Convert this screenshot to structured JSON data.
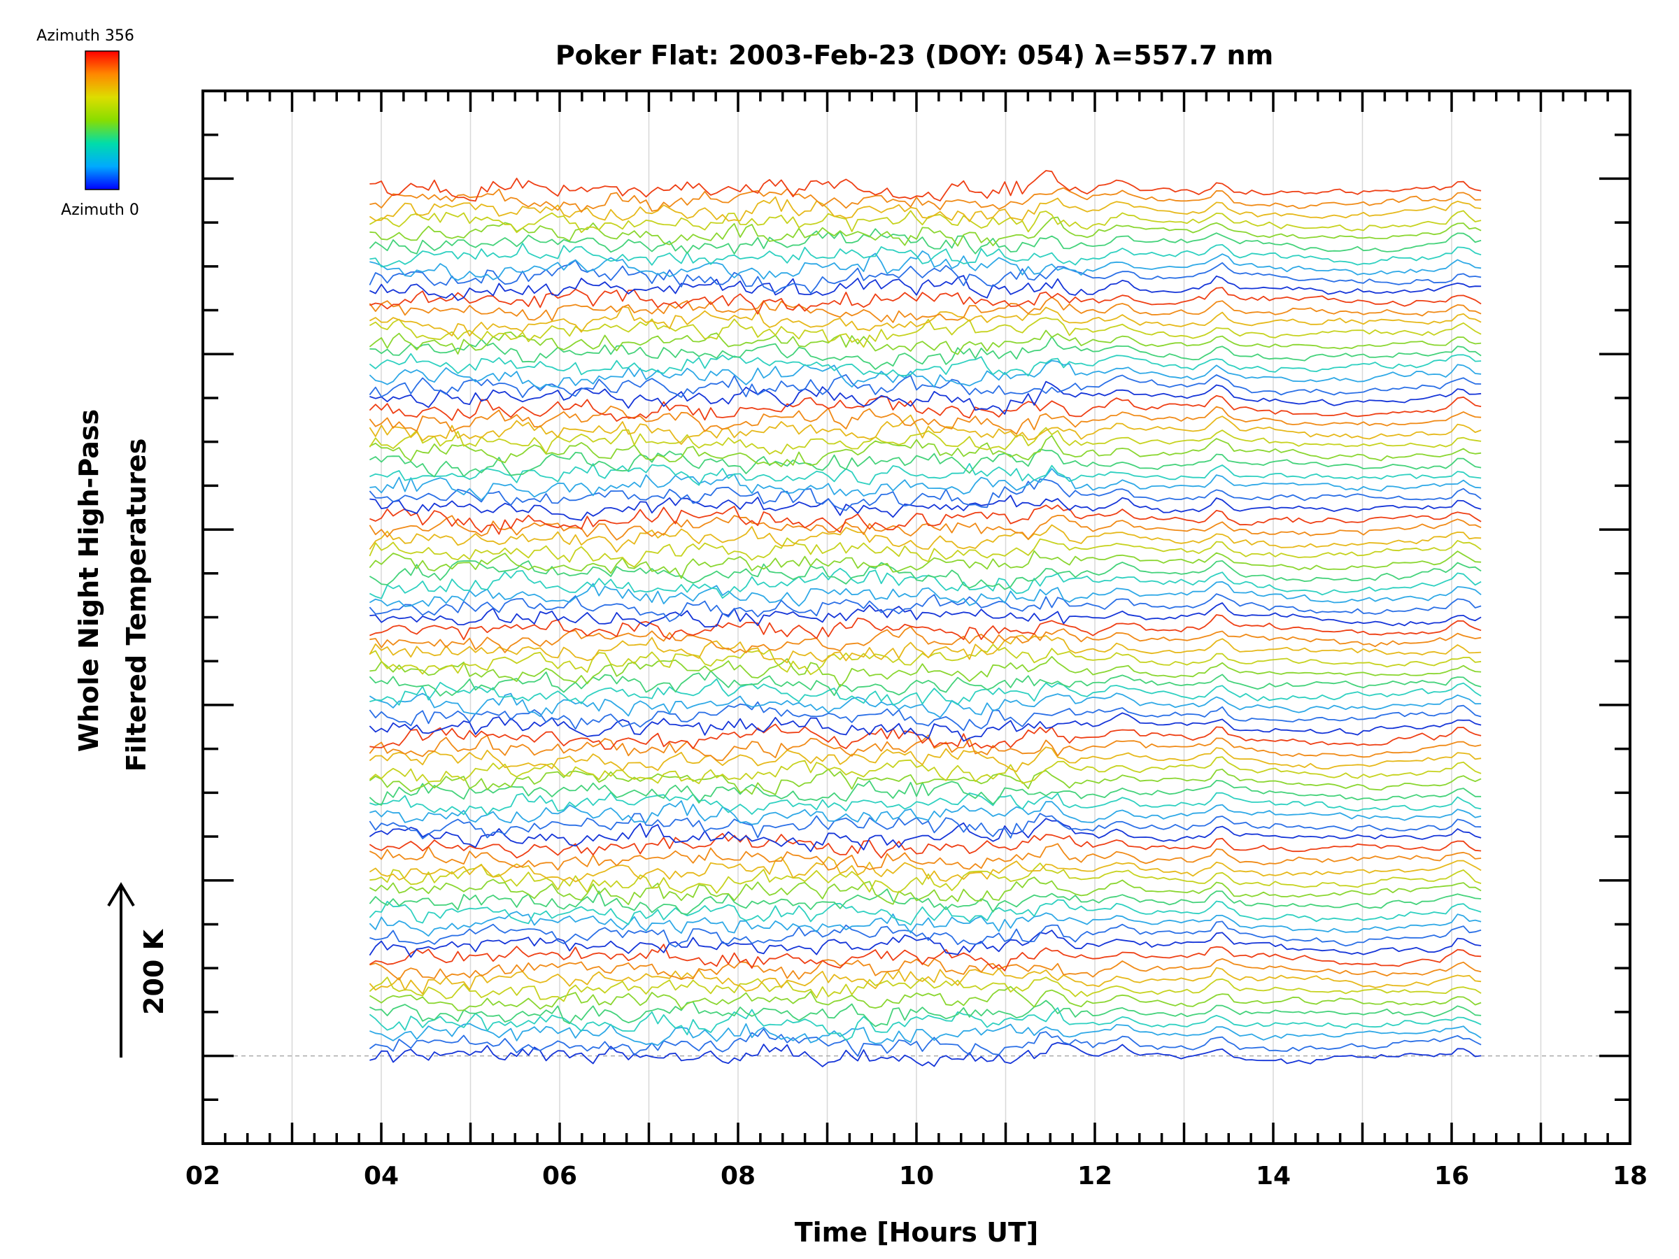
{
  "chart_data": {
    "type": "line",
    "title": "Poker Flat: 2003-Feb-23 (DOY: 054) λ=557.7 nm",
    "xlabel": "Time [Hours UT]",
    "ylabel_line1": "Whole Night High-Pass",
    "ylabel_line2": "Filtered Temperatures",
    "scale_label": "200 K",
    "xlim": [
      2,
      18
    ],
    "x_tick_labels": [
      "02",
      "04",
      "06",
      "08",
      "10",
      "12",
      "14",
      "16",
      "18"
    ],
    "x_tick_values": [
      2,
      4,
      6,
      8,
      10,
      12,
      14,
      16,
      18
    ],
    "x_minor_step": 0.25,
    "x_gridlines": [
      3,
      4,
      5,
      6,
      7,
      8,
      9,
      10,
      11,
      12,
      13,
      14,
      15,
      16,
      17
    ],
    "ylim": [
      0,
      12
    ],
    "y_major_ticks": [
      1,
      3,
      5,
      7,
      9,
      11
    ],
    "y_minor_step": 0.5,
    "baseline_y": 1,
    "time_range": [
      3.87,
      16.33
    ],
    "trace_count": 80,
    "trace_spacing": 0.125,
    "colorbar": {
      "max_label": "Azimuth 356",
      "min_label": "Azimuth 0",
      "colors": [
        "#0000ff",
        "#00aaff",
        "#00ddaa",
        "#88dd00",
        "#dddd00",
        "#ff8800",
        "#ff0000"
      ]
    },
    "trace_color_cycle": [
      "#1535d8",
      "#2a6fe6",
      "#2ea8e6",
      "#2ed0c0",
      "#44d27a",
      "#8ad630",
      "#c6d21e",
      "#e6b81a",
      "#f08a16",
      "#ee3f14"
    ],
    "noise_amplitude_early": 0.09,
    "noise_amplitude_late": 0.03,
    "common_features": [
      {
        "x": 11.5,
        "amp": 0.1,
        "width": 0.12
      },
      {
        "x": 12.3,
        "amp": 0.08,
        "width": 0.1
      },
      {
        "x": 13.4,
        "amp": 0.12,
        "width": 0.08
      },
      {
        "x": 14.8,
        "amp": -0.04,
        "width": 0.6
      },
      {
        "x": 16.1,
        "amp": 0.09,
        "width": 0.08
      }
    ]
  }
}
